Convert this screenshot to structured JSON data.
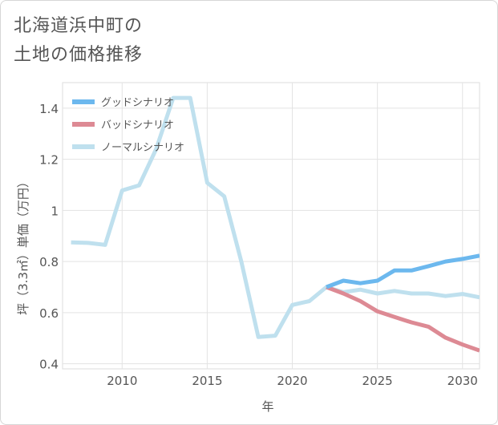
{
  "title_lines": [
    "北海道浜中町の",
    "土地の価格推移"
  ],
  "chart_data": {
    "type": "line",
    "title": "北海道浜中町の土地の価格推移",
    "xlabel": "年",
    "ylabel": "坪（3.3㎡）単価（万円）",
    "xlim": [
      2006.5,
      2031
    ],
    "ylim": [
      0.38,
      1.5
    ],
    "xticks": [
      2010,
      2015,
      2020,
      2025,
      2030
    ],
    "yticks": [
      0.4,
      0.6,
      0.8,
      1.0,
      1.2,
      1.4
    ],
    "ytick_labels": [
      "0.4",
      "0.6",
      "0.8",
      "1",
      "1.2",
      "1.4"
    ],
    "grid": true,
    "legend_position": "top-left",
    "series": [
      {
        "name": "グッドシナリオ",
        "color": "#6cb8ee",
        "x": [
          2022,
          2023,
          2024,
          2025,
          2026,
          2027,
          2028,
          2029,
          2030,
          2031
        ],
        "y": [
          0.7,
          0.725,
          0.715,
          0.725,
          0.765,
          0.765,
          0.782,
          0.8,
          0.81,
          0.823
        ]
      },
      {
        "name": "バッドシナリオ",
        "color": "#dd8a94",
        "x": [
          2022,
          2023,
          2024,
          2025,
          2026,
          2027,
          2028,
          2029,
          2030,
          2031
        ],
        "y": [
          0.7,
          0.675,
          0.645,
          0.605,
          0.583,
          0.562,
          0.545,
          0.502,
          0.475,
          0.452
        ]
      },
      {
        "name": "ノーマルシナリオ",
        "color": "#bfe0ee",
        "x": [
          2007,
          2008,
          2009,
          2010,
          2011,
          2012,
          2013,
          2014,
          2015,
          2016,
          2017,
          2018,
          2019,
          2020,
          2021,
          2022,
          2023,
          2024,
          2025,
          2026,
          2027,
          2028,
          2029,
          2030,
          2031
        ],
        "y": [
          0.875,
          0.873,
          0.865,
          1.078,
          1.098,
          1.24,
          1.44,
          1.44,
          1.108,
          1.055,
          0.8,
          0.505,
          0.51,
          0.63,
          0.645,
          0.7,
          0.68,
          0.69,
          0.675,
          0.685,
          0.675,
          0.675,
          0.665,
          0.673,
          0.66
        ]
      }
    ]
  }
}
